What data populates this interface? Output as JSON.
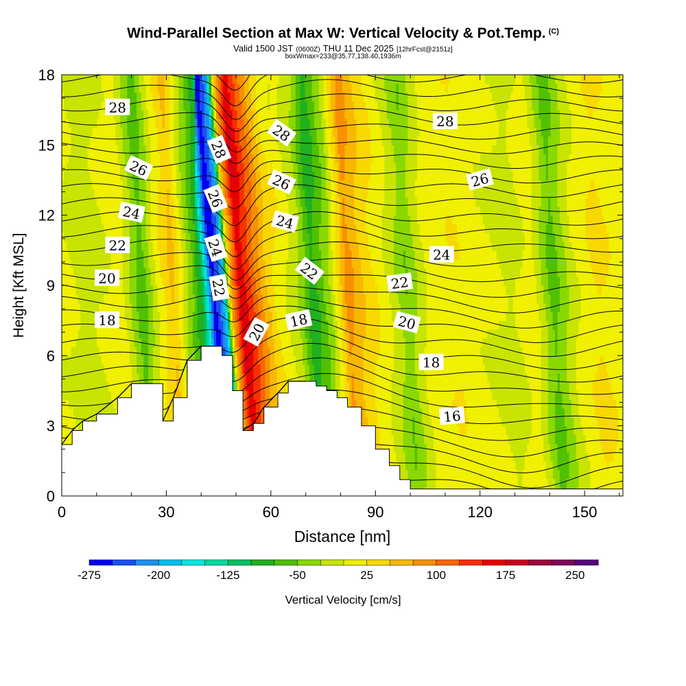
{
  "title": {
    "main": "Wind-Parallel Section at Max W: Vertical Velocity & Pot.Temp.",
    "copyright": "(C)",
    "valid_prefix": "Valid 1500 JST",
    "valid_z": "(0600Z)",
    "valid_date": "THU 11 Dec 2025",
    "valid_fcst": "[12hrFcst@2151z]",
    "boxwmax": "boxWmax=233@35.77,138.40,1936m"
  },
  "chart_data": {
    "type": "heatmap",
    "xlabel": "Distance [nm]",
    "ylabel": "Height [Kft MSL]",
    "xlim": [
      0,
      161
    ],
    "ylim": [
      0,
      18
    ],
    "x_ticks": [
      0,
      30,
      60,
      90,
      120,
      150
    ],
    "y_ticks": [
      0,
      3,
      6,
      9,
      12,
      15,
      18
    ],
    "colorbar": {
      "label": "Vertical Velocity [cm/s]",
      "min": -275,
      "step": 25,
      "tick_values": [
        -275,
        -200,
        -125,
        -50,
        25,
        100,
        175,
        250
      ],
      "colors": [
        "#0000f0",
        "#1a50f0",
        "#1e90f0",
        "#00c0f0",
        "#00e8e0",
        "#00d8a0",
        "#00c060",
        "#20b020",
        "#50c000",
        "#8ad800",
        "#c8e400",
        "#f0f000",
        "#f8d800",
        "#f8b800",
        "#f89000",
        "#f86800",
        "#f83000",
        "#e80000",
        "#c80020",
        "#a00040",
        "#800060",
        "#580080"
      ]
    },
    "terrain_kft": [
      [
        0,
        2.2
      ],
      [
        3,
        2.8
      ],
      [
        6,
        3.2
      ],
      [
        10,
        3.5
      ],
      [
        16,
        4.2
      ],
      [
        20,
        4.8
      ],
      [
        26,
        4.8
      ],
      [
        29,
        3.2
      ],
      [
        32,
        4.2
      ],
      [
        36,
        5.8
      ],
      [
        40,
        6.4
      ],
      [
        46,
        6.0
      ],
      [
        49,
        4.5
      ],
      [
        52,
        2.8
      ],
      [
        55,
        3.1
      ],
      [
        58,
        3.8
      ],
      [
        62,
        4.4
      ],
      [
        65,
        4.9
      ],
      [
        70,
        4.9
      ],
      [
        73,
        4.7
      ],
      [
        76,
        4.5
      ],
      [
        79,
        4.2
      ],
      [
        82,
        3.8
      ],
      [
        86,
        3.0
      ],
      [
        90,
        2.0
      ],
      [
        94,
        1.3
      ],
      [
        97,
        0.7
      ],
      [
        100,
        0.3
      ],
      [
        161,
        0.3
      ]
    ],
    "w_field": [
      {
        "x": 2,
        "w": 5
      },
      {
        "x": 8,
        "w": -15
      },
      {
        "x": 18,
        "w": 15
      },
      {
        "x": 24,
        "w": -65
      },
      {
        "x": 29,
        "w": 15
      },
      {
        "x": 33,
        "w": 55
      },
      {
        "x": 37,
        "w": -25
      },
      {
        "x": 42,
        "w": -110
      },
      {
        "x": 45,
        "w": -275
      },
      {
        "x": 48,
        "w": -200
      },
      {
        "x": 50,
        "w": 60
      },
      {
        "x": 53,
        "w": 175
      },
      {
        "x": 57,
        "w": 110
      },
      {
        "x": 62,
        "w": 30
      },
      {
        "x": 69,
        "w": -20
      },
      {
        "x": 73,
        "w": -90
      },
      {
        "x": 78,
        "w": -30
      },
      {
        "x": 83,
        "w": 85
      },
      {
        "x": 88,
        "w": 40
      },
      {
        "x": 94,
        "w": 5
      },
      {
        "x": 100,
        "w": -45
      },
      {
        "x": 106,
        "w": 10
      },
      {
        "x": 114,
        "w": 20
      },
      {
        "x": 122,
        "w": 5
      },
      {
        "x": 130,
        "w": -10
      },
      {
        "x": 136,
        "w": 15
      },
      {
        "x": 142,
        "w": -60
      },
      {
        "x": 148,
        "w": 0
      },
      {
        "x": 155,
        "w": 30
      },
      {
        "x": 161,
        "w": 10
      }
    ],
    "theta_contour_labels": [
      {
        "x": 16,
        "y": 16.6,
        "text": "28",
        "angle": 0
      },
      {
        "x": 22,
        "y": 14.0,
        "text": "26",
        "angle": 25
      },
      {
        "x": 20,
        "y": 12.1,
        "text": "24",
        "angle": 12
      },
      {
        "x": 16,
        "y": 10.7,
        "text": "22",
        "angle": 0
      },
      {
        "x": 13,
        "y": 9.3,
        "text": "20",
        "angle": 0
      },
      {
        "x": 13,
        "y": 7.5,
        "text": "18",
        "angle": 0
      },
      {
        "x": 45,
        "y": 14.8,
        "text": "28",
        "angle": 68
      },
      {
        "x": 44,
        "y": 12.7,
        "text": "26",
        "angle": 68
      },
      {
        "x": 44,
        "y": 10.6,
        "text": "24",
        "angle": 72
      },
      {
        "x": 45,
        "y": 8.9,
        "text": "22",
        "angle": 80
      },
      {
        "x": 56,
        "y": 7.0,
        "text": "20",
        "angle": -62
      },
      {
        "x": 68,
        "y": 7.5,
        "text": "18",
        "angle": -12
      },
      {
        "x": 63,
        "y": 15.5,
        "text": "28",
        "angle": 35
      },
      {
        "x": 63,
        "y": 13.4,
        "text": "26",
        "angle": 25
      },
      {
        "x": 64,
        "y": 11.7,
        "text": "24",
        "angle": 15
      },
      {
        "x": 71,
        "y": 9.6,
        "text": "22",
        "angle": 38
      },
      {
        "x": 97,
        "y": 9.1,
        "text": "22",
        "angle": -8
      },
      {
        "x": 99,
        "y": 7.4,
        "text": "20",
        "angle": 15
      },
      {
        "x": 106,
        "y": 5.7,
        "text": "18",
        "angle": 0
      },
      {
        "x": 112,
        "y": 3.4,
        "text": "16",
        "angle": -5
      },
      {
        "x": 109,
        "y": 10.3,
        "text": "24",
        "angle": 0
      },
      {
        "x": 120,
        "y": 13.5,
        "text": "26",
        "angle": -15
      },
      {
        "x": 110,
        "y": 16.0,
        "text": "28",
        "angle": 0
      }
    ]
  }
}
